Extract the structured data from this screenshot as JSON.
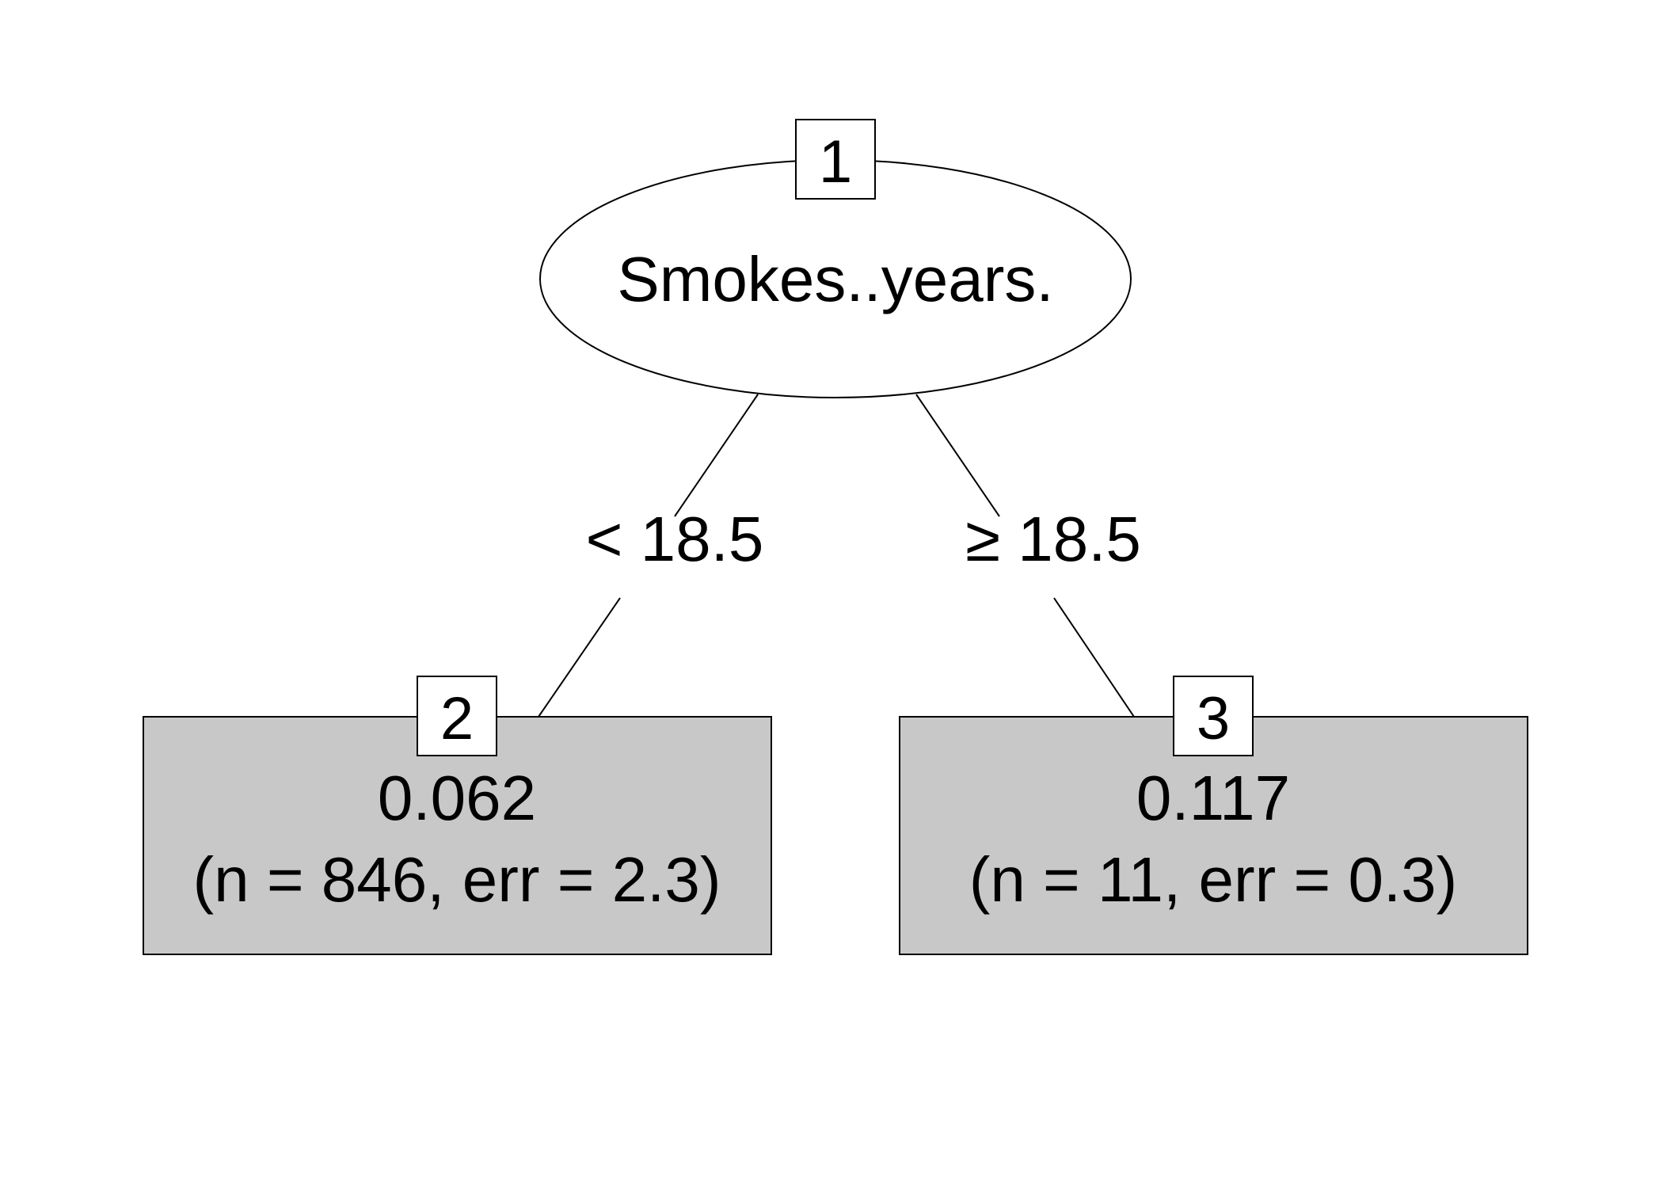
{
  "diagram": {
    "type": "decision-tree",
    "colors": {
      "background": "#ffffff",
      "line": "#000000",
      "split_node_fill": "#ffffff",
      "leaf_fill": "#c8c8c8",
      "id_box_fill": "#ffffff"
    },
    "root": {
      "id": "1",
      "variable": "Smokes..years."
    },
    "edges": {
      "left": {
        "label": "< 18.5"
      },
      "right": {
        "label": "≥ 18.5"
      }
    },
    "leaves": [
      {
        "id": "2",
        "value": "0.062",
        "stats": "(n = 846, err = 2.3)"
      },
      {
        "id": "3",
        "value": "0.117",
        "stats": "(n = 11, err = 0.3)"
      }
    ]
  }
}
